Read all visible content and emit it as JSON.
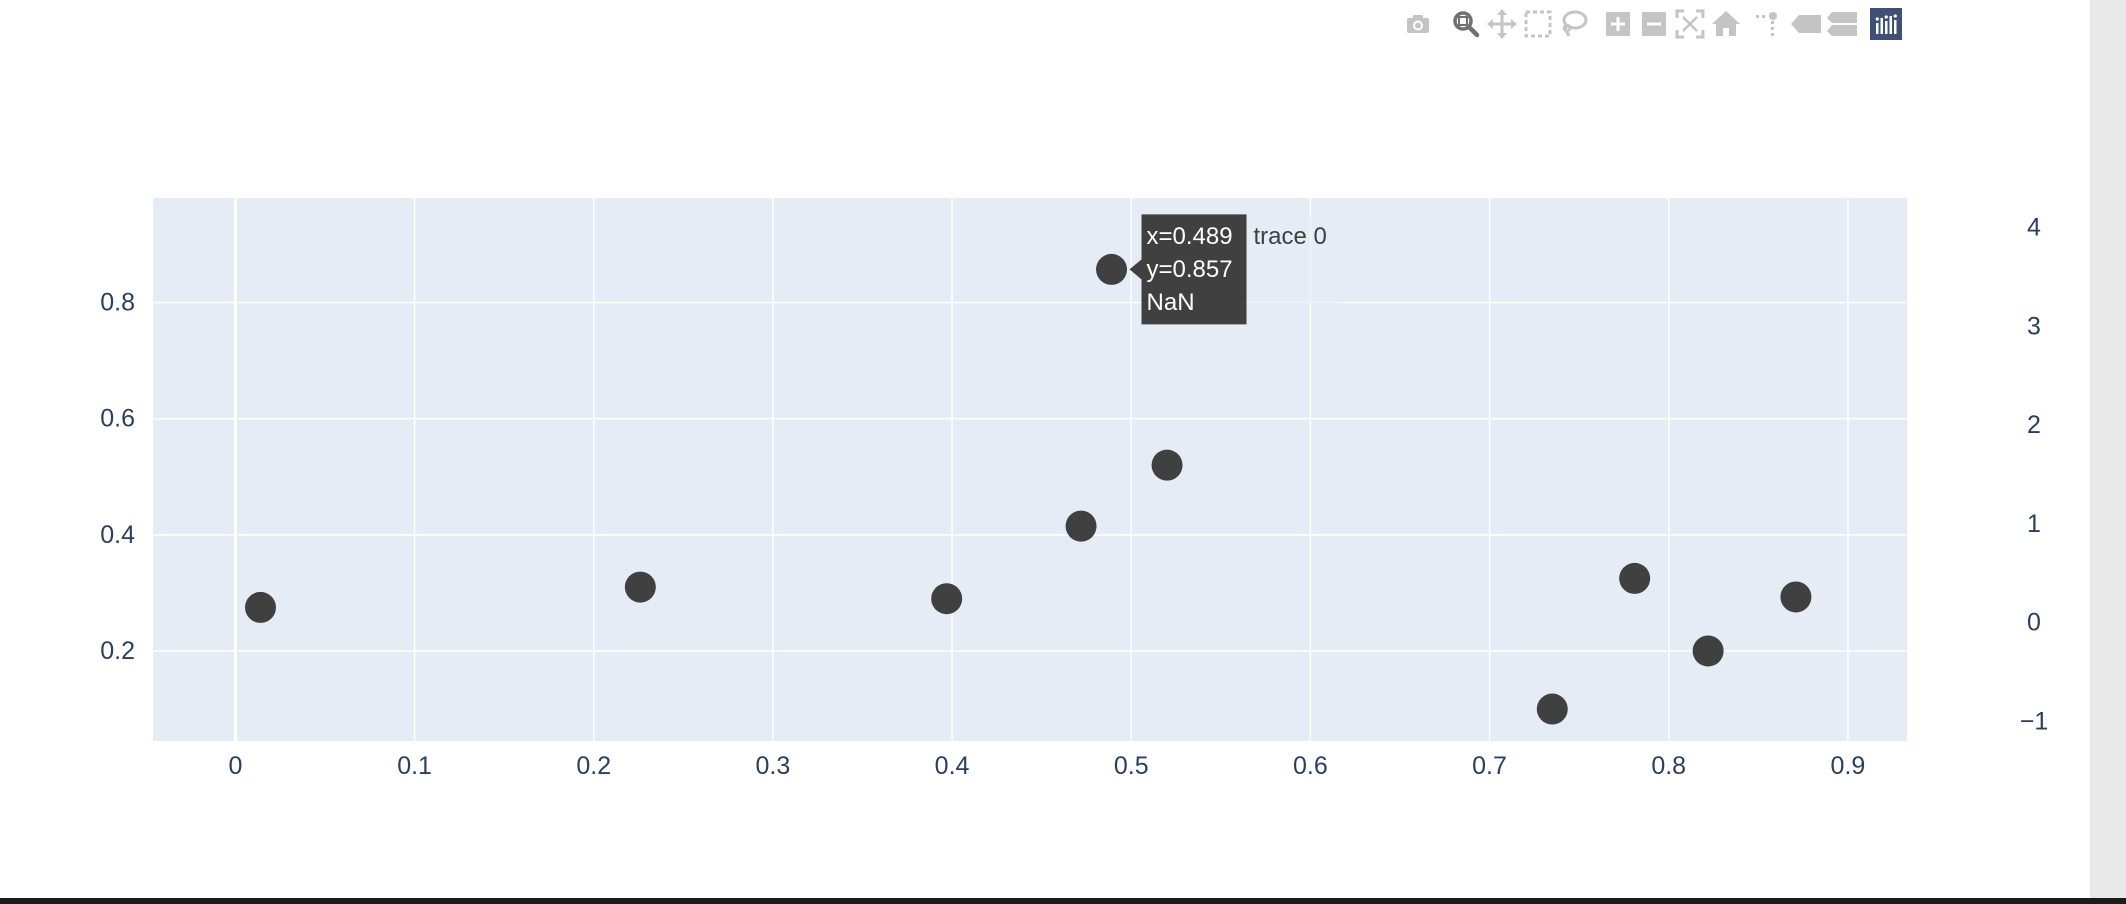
{
  "modebar": {
    "buttons": [
      {
        "name": "download-plot-button",
        "icon": "camera-icon",
        "title": "Download plot as a png",
        "active": false
      },
      {
        "name": "zoom-button",
        "icon": "zoom-icon",
        "title": "Zoom",
        "active": true
      },
      {
        "name": "pan-button",
        "icon": "pan-icon",
        "title": "Pan",
        "active": false
      },
      {
        "name": "box-select-button",
        "icon": "box-select-icon",
        "title": "Box Select",
        "active": false
      },
      {
        "name": "lasso-select-button",
        "icon": "lasso-icon",
        "title": "Lasso Select",
        "active": false
      },
      {
        "name": "zoom-in-button",
        "icon": "zoom-in-icon",
        "title": "Zoom in",
        "active": false
      },
      {
        "name": "zoom-out-button",
        "icon": "zoom-out-icon",
        "title": "Zoom out",
        "active": false
      },
      {
        "name": "autoscale-button",
        "icon": "autoscale-icon",
        "title": "Autoscale",
        "active": false
      },
      {
        "name": "reset-axes-button",
        "icon": "home-icon",
        "title": "Reset axes",
        "active": false
      },
      {
        "name": "spike-lines-button",
        "icon": "spikeline-icon",
        "title": "Toggle Spike Lines",
        "active": false
      },
      {
        "name": "hover-closest-button",
        "icon": "tooltip-basic-icon",
        "title": "Show closest data on hover",
        "active": false
      },
      {
        "name": "hover-compare-button",
        "icon": "tooltip-compare-icon",
        "title": "Compare data on hover",
        "active": false
      },
      {
        "name": "plotly-logo-button",
        "icon": "plotly-logo-icon",
        "title": "Produced with Plotly",
        "active": false
      }
    ]
  },
  "colors": {
    "plot_bg": "#e5ecf6",
    "paper_bg": "#ffffff",
    "grid": "#ffffff",
    "tick_text": "#2a3f5f",
    "marker": "#404040",
    "modebar_icon": "#c4c4c4",
    "modebar_icon_active": "#707070",
    "plotly_logo_bg": "#3f4f75",
    "hover_bg": "#404040",
    "hover_text": "#ffffff"
  },
  "chart_data": {
    "type": "scatter",
    "series": [
      {
        "name": "trace 0",
        "x": [
          0.014,
          0.226,
          0.397,
          0.472,
          0.489,
          0.52,
          0.735,
          0.781,
          0.822,
          0.871
        ],
        "y": [
          0.275,
          0.31,
          0.29,
          0.415,
          0.857,
          0.52,
          0.1,
          0.325,
          0.2,
          0.293
        ]
      }
    ],
    "title": "",
    "xlabel": "",
    "ylabel": "",
    "xlim": [
      -0.046,
      0.933
    ],
    "ylim": [
      0.045,
      0.98
    ],
    "y2lim": [
      -1.2,
      4.3
    ],
    "xticks": [
      0,
      0.1,
      0.2,
      0.3,
      0.4,
      0.5,
      0.6,
      0.7,
      0.8,
      0.9
    ],
    "xtick_labels": [
      "0",
      "0.1",
      "0.2",
      "0.3",
      "0.4",
      "0.5",
      "0.6",
      "0.7",
      "0.8",
      "0.9"
    ],
    "yticks": [
      0.2,
      0.4,
      0.6,
      0.8
    ],
    "ytick_labels": [
      "0.2",
      "0.4",
      "0.6",
      "0.8"
    ],
    "y2ticks": [
      -1,
      0,
      1,
      2,
      3,
      4
    ],
    "y2tick_labels": [
      "−1",
      "0",
      "1",
      "2",
      "3",
      "4"
    ],
    "grid": true,
    "legend": false,
    "hover": {
      "point_index": 4,
      "lines": [
        "x=0.489",
        "y=0.857",
        "NaN"
      ],
      "trace_name": "trace 0"
    }
  }
}
